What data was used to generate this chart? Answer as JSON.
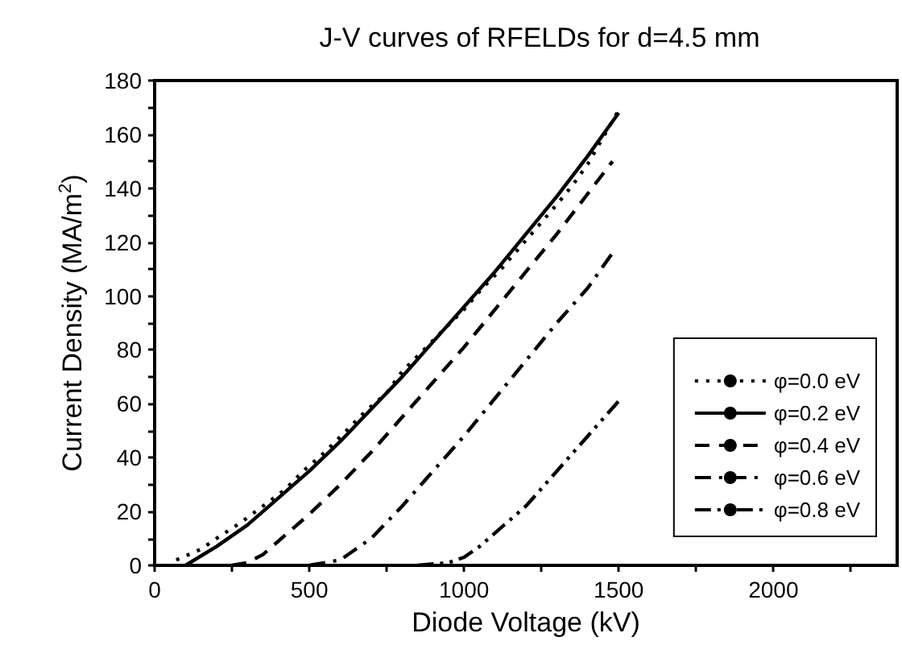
{
  "chart_data": {
    "type": "line",
    "title": "J-V curves of RFELDs for d=4.5 mm",
    "xlabel": "Diode Voltage (kV)",
    "ylabel": "Current Density (MA/m$^{2}$)",
    "xlim": [
      0,
      2400
    ],
    "xticks": [
      0,
      {
        "value": 250,
        "label": null
      },
      500,
      {
        "value": 750,
        "label": null
      },
      1000,
      {
        "value": 1250,
        "label": null
      },
      1500,
      {
        "value": 1750,
        "label": null
      },
      2000,
      {
        "value": 2250,
        "label": null
      }
    ],
    "ylim": [
      0,
      180
    ],
    "yticks": [
      0,
      {
        "value": 10,
        "label": null
      },
      20,
      {
        "value": 30,
        "label": null
      },
      40,
      {
        "value": 50,
        "label": null
      },
      60,
      {
        "value": 70,
        "label": null
      },
      80,
      {
        "value": 90,
        "label": null
      },
      100,
      {
        "value": 110,
        "label": null
      },
      120,
      {
        "value": 130,
        "label": null
      },
      140,
      {
        "value": 150,
        "label": null
      },
      160,
      {
        "value": 170,
        "label": null
      },
      180
    ],
    "grid": false,
    "legend": "bottom right",
    "marker": "none",
    "series": [
      {
        "name": "φ=0.0 eV",
        "color": "#000000",
        "line_style": "dotted",
        "x": [
          70,
          150,
          200,
          280,
          350,
          420,
          480,
          550,
          620,
          680,
          750,
          800,
          870,
          930,
          1000,
          1060,
          1120,
          1180,
          1240,
          1300,
          1350,
          1400,
          1440,
          1500
        ],
        "values": [
          2,
          6,
          10,
          16,
          22,
          28,
          35,
          42,
          50,
          57,
          64,
          72,
          80,
          87,
          95,
          103,
          110,
          118,
          126,
          134,
          141,
          149,
          157,
          169
        ]
      },
      {
        "name": "φ=0.2 eV",
        "color": "#000000",
        "line_style": "solid",
        "x": [
          100,
          200,
          300,
          400,
          500,
          600,
          700,
          800,
          900,
          1000,
          1100,
          1200,
          1300,
          1400,
          1500
        ],
        "values": [
          0,
          7,
          15,
          25,
          35,
          46,
          58,
          70,
          83,
          96,
          109,
          123,
          137,
          152,
          168
        ]
      },
      {
        "name": "φ=0.4 eV",
        "color": "#000000",
        "line_style": "dashed",
        "x": [
          250,
          300,
          350,
          400,
          500,
          600,
          700,
          800,
          900,
          1000,
          1100,
          1200,
          1300,
          1400,
          1480
        ],
        "values": [
          0,
          1,
          4,
          9,
          19,
          30,
          42,
          55,
          68,
          81,
          95,
          109,
          123,
          138,
          150
        ]
      },
      {
        "name": "φ=0.6 eV",
        "color": "#000000",
        "line_style": "dashdot",
        "x": [
          500,
          600,
          700,
          800,
          900,
          1000,
          1100,
          1200,
          1300,
          1400,
          1480
        ],
        "values": [
          0,
          2,
          10,
          22,
          35,
          48,
          62,
          76,
          90,
          103,
          116
        ]
      },
      {
        "name": "φ=0.8 eV",
        "color": "#000000",
        "line_style": "dashdotdot",
        "x": [
          850,
          950,
          1000,
          1050,
          1100,
          1200,
          1300,
          1400,
          1500
        ],
        "values": [
          0,
          1,
          3,
          7,
          12,
          22,
          35,
          48,
          61
        ]
      }
    ]
  }
}
